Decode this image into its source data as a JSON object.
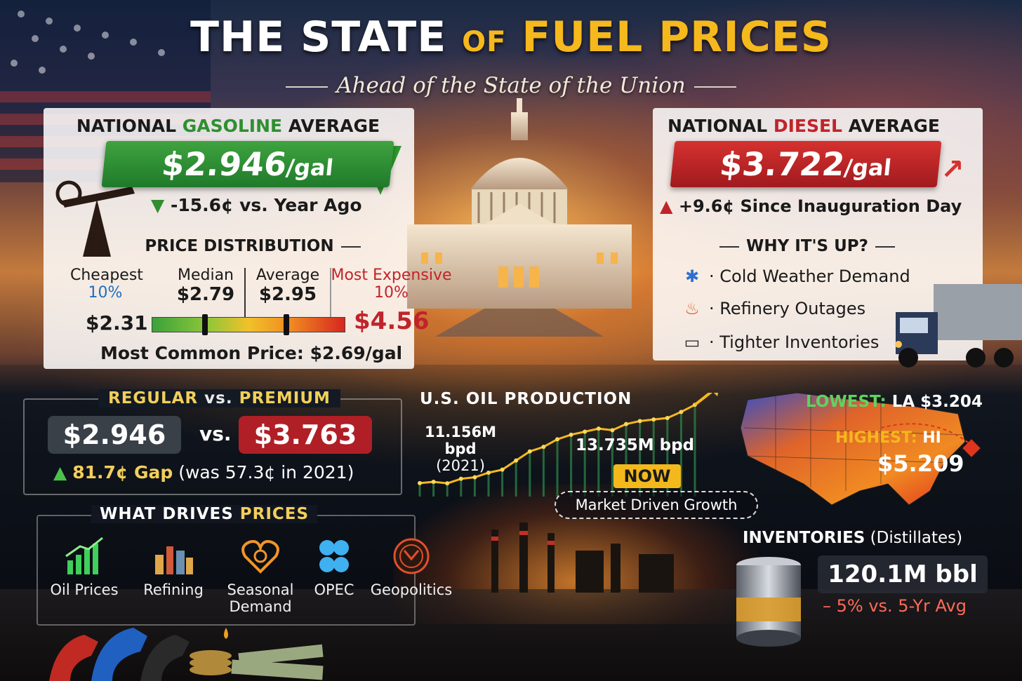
{
  "title": {
    "part1": "THE STATE",
    "part2": "OF",
    "part3": "FUEL PRICES"
  },
  "subtitle": "Ahead of the State of the Union",
  "gasoline": {
    "heading_pre": "NATIONAL",
    "heading_mid": "GASOLINE",
    "heading_post": "AVERAGE",
    "price": "$2.946",
    "unit": "/gal",
    "change": "-15.6¢ vs. Year Ago"
  },
  "distribution": {
    "heading": "PRICE DISTRIBUTION",
    "cheapest": {
      "label": "Cheapest",
      "pct": "10%",
      "value": "$2.31"
    },
    "median": {
      "label": "Median",
      "value": "$2.79"
    },
    "average": {
      "label": "Average",
      "value": "$2.95"
    },
    "expensive": {
      "label": "Most Expensive",
      "pct": "10%",
      "value": "$4.56"
    },
    "most_common": "Most Common Price: $2.69/gal"
  },
  "diesel": {
    "heading_pre": "NATIONAL",
    "heading_mid": "DIESEL",
    "heading_post": "AVERAGE",
    "price": "$3.722",
    "unit": "/gal",
    "change": "+9.6¢ Since Inauguration Day"
  },
  "why_up": {
    "heading": "WHY IT'S UP?",
    "items": [
      {
        "label": "· Cold Weather Demand",
        "icon": "snowflake-icon"
      },
      {
        "label": "· Refinery Outages",
        "icon": "fire-icon"
      },
      {
        "label": "· Tighter Inventories",
        "icon": "tank-icon"
      }
    ]
  },
  "regular_premium": {
    "heading_a": "REGULAR",
    "heading_vs": "vs.",
    "heading_b": "PREMIUM",
    "regular": "$2.946",
    "vs": "vs.",
    "premium": "$3.763",
    "gap": "81.7¢ Gap",
    "gap_note": "(was 57.3¢ in 2021)"
  },
  "drivers": {
    "heading_a": "WHAT DRIVES",
    "heading_b": "PRICES",
    "items": [
      {
        "label": "Oil Prices",
        "icon": "bar-chart-icon"
      },
      {
        "label": "Refining",
        "icon": "refinery-icon"
      },
      {
        "label": "Seasonal Demand",
        "icon": "heart-icon"
      },
      {
        "label": "OPEC",
        "icon": "opec-icon"
      },
      {
        "label": "Geopolitics",
        "icon": "globe-icon"
      }
    ]
  },
  "oil_production": {
    "heading": "U.S. OIL PRODUCTION",
    "start_value": "11.156M bpd",
    "start_year": "(2021)",
    "now_value": "13.735M bpd",
    "now_label": "NOW",
    "note": "Market Driven Growth",
    "trend": [
      11.156,
      11.2,
      11.15,
      11.3,
      11.35,
      11.5,
      11.6,
      11.9,
      12.2,
      12.35,
      12.6,
      12.75,
      12.85,
      12.95,
      12.9,
      13.1,
      13.2,
      13.25,
      13.3,
      13.5,
      13.735
    ]
  },
  "map": {
    "lowest_label": "LOWEST:",
    "lowest_value": "LA $3.204",
    "highest_label": "HIGHEST:",
    "highest_state": "HI",
    "highest_value": "$5.209"
  },
  "inventories": {
    "heading": "INVENTORIES",
    "sub": "(Distillates)",
    "value": "120.1M bbl",
    "change": "– 5% vs. 5-Yr Avg"
  },
  "colors": {
    "green": "#2f8f2f",
    "red": "#c0242b",
    "gold": "#f5b81d"
  }
}
